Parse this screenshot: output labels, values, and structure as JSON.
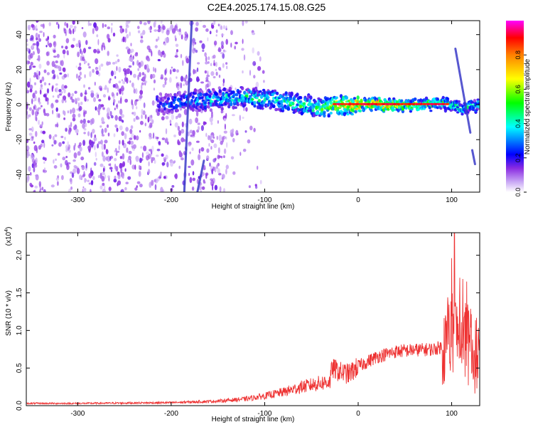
{
  "figure_title": "C2E4.2025.174.15.08.G25",
  "chart_data": [
    {
      "type": "heatmap",
      "xlabel": "Height of straight line (km)",
      "ylabel": "Frequency (Hz)",
      "xlim": [
        -355,
        130
      ],
      "ylim": [
        -50,
        48
      ],
      "xticks": [
        -300,
        -200,
        -100,
        0,
        100
      ],
      "yticks": [
        -40,
        -20,
        0,
        20,
        40
      ],
      "xtick_labels": [
        "-300",
        "-200",
        "-100",
        "0",
        "100"
      ],
      "ytick_labels": [
        "-40",
        "-20",
        "0",
        "20",
        "40"
      ],
      "colorbar": {
        "label": "Normalized spectral amplitude",
        "range": [
          0,
          1
        ],
        "ticks": [
          0,
          0.2,
          0.4,
          0.6,
          0.8
        ],
        "tick_labels": [
          "0.0",
          "0.2",
          "0.4",
          "0.6",
          "0.8"
        ],
        "colormap": [
          "#ffffff",
          "#8a2be2",
          "#0000ff",
          "#00ffff",
          "#00ff00",
          "#ffff00",
          "#ff8000",
          "#ff0000",
          "#ff00ff"
        ]
      },
      "features": {
        "noise_region_x": [
          -355,
          -140
        ],
        "main_band": [
          {
            "x": -210,
            "y": 0,
            "amp": 0.3
          },
          {
            "x": -180,
            "y": 2,
            "amp": 0.4
          },
          {
            "x": -150,
            "y": 3,
            "amp": 0.45
          },
          {
            "x": -120,
            "y": 4,
            "amp": 0.5
          },
          {
            "x": -90,
            "y": 3,
            "amp": 0.5
          },
          {
            "x": -60,
            "y": 0,
            "amp": 0.55
          },
          {
            "x": -40,
            "y": -2,
            "amp": 0.6
          },
          {
            "x": -20,
            "y": 0,
            "amp": 0.8
          },
          {
            "x": 0,
            "y": 0,
            "amp": 0.9
          },
          {
            "x": 30,
            "y": 0,
            "amp": 0.85
          },
          {
            "x": 60,
            "y": 0,
            "amp": 0.7
          },
          {
            "x": 90,
            "y": 1,
            "amp": 0.6
          },
          {
            "x": 110,
            "y": -2,
            "amp": 0.5
          },
          {
            "x": 130,
            "y": 0,
            "amp": 0.45
          }
        ],
        "diagonal_streaks": [
          {
            "x1": -178,
            "y1": 48,
            "x2": -186,
            "y2": -50
          },
          {
            "x1": 104,
            "y1": 32,
            "x2": 120,
            "y2": -16
          },
          {
            "x1": 122,
            "y1": -26,
            "x2": 125,
            "y2": -34
          },
          {
            "x1": -165,
            "y1": -32,
            "x2": -172,
            "y2": -50
          }
        ]
      }
    },
    {
      "type": "line",
      "xlabel": "Height of straight line (km)",
      "ylabel": "SNR (10 * v/v)",
      "scale_label": "(x10",
      "scale_exp": "4",
      "scale_close": ")",
      "xlim": [
        -355,
        130
      ],
      "ylim": [
        0,
        2.3
      ],
      "xticks": [
        -300,
        -200,
        -100,
        0,
        100
      ],
      "yticks": [
        0,
        0.5,
        1,
        1.5,
        2
      ],
      "xtick_labels": [
        "-300",
        "-200",
        "-100",
        "0",
        "100"
      ],
      "ytick_labels": [
        "0.0",
        "0.5",
        "1.0",
        "1.5",
        "2.0"
      ],
      "series": [
        {
          "color": "#ee3333",
          "envelope_x": [
            -355,
            -300,
            -200,
            -150,
            -120,
            -100,
            -80,
            -60,
            -40,
            -30,
            -28,
            -20,
            -10,
            0,
            20,
            40,
            60,
            80,
            95,
            100,
            105,
            110,
            115,
            120,
            125,
            130
          ],
          "envelope_y": [
            0.03,
            0.03,
            0.04,
            0.06,
            0.09,
            0.13,
            0.18,
            0.25,
            0.3,
            0.32,
            0.5,
            0.45,
            0.42,
            0.52,
            0.65,
            0.72,
            0.74,
            0.75,
            0.8,
            0.95,
            0.95,
            0.9,
            0.85,
            0.75,
            0.7,
            0.68
          ],
          "peak": {
            "x": 103,
            "y": 2.3
          }
        }
      ]
    }
  ]
}
